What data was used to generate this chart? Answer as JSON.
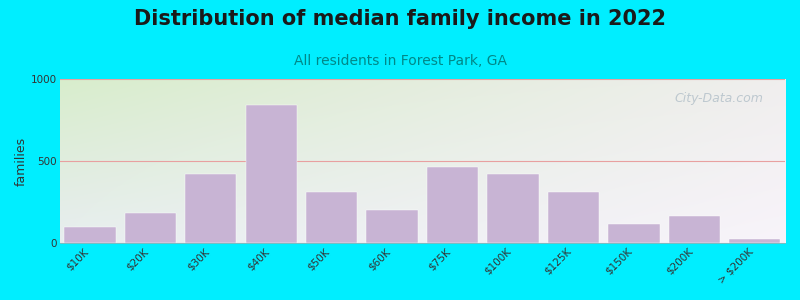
{
  "title": "Distribution of median family income in 2022",
  "subtitle": "All residents in Forest Park, GA",
  "ylabel": "families",
  "categories": [
    "$10K",
    "$20K",
    "$30K",
    "$40K",
    "$50K",
    "$60K",
    "$75K",
    "$100K",
    "$125K",
    "$150K",
    "$200K",
    "> $200K"
  ],
  "values": [
    100,
    185,
    420,
    840,
    315,
    205,
    465,
    420,
    310,
    120,
    165,
    25
  ],
  "bar_color": "#c8b4d4",
  "bar_edge_color": "#c8b4d4",
  "ylim": [
    0,
    1000
  ],
  "yticks": [
    0,
    500,
    1000
  ],
  "background_outer": "#00eeff",
  "bg_color_top_left": "#d8edcc",
  "bg_color_top_right": "#f0eeee",
  "bg_color_bottom": "#f0eef8",
  "grid_color": "#e8a0a0",
  "title_fontsize": 15,
  "title_color": "#1a1a1a",
  "subtitle_fontsize": 10,
  "subtitle_color": "#008888",
  "ylabel_fontsize": 9,
  "tick_fontsize": 7.5,
  "watermark_text": "City-Data.com",
  "watermark_color": "#b8c4cc",
  "watermark_fontsize": 9
}
